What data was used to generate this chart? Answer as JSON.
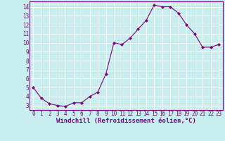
{
  "x": [
    0,
    1,
    2,
    3,
    4,
    5,
    6,
    7,
    8,
    9,
    10,
    11,
    12,
    13,
    14,
    15,
    16,
    17,
    18,
    19,
    20,
    21,
    22,
    23
  ],
  "y": [
    5.0,
    3.8,
    3.2,
    3.0,
    2.9,
    3.3,
    3.3,
    4.0,
    4.5,
    6.5,
    10.0,
    9.8,
    10.5,
    11.5,
    12.5,
    14.2,
    14.0,
    14.0,
    13.3,
    12.0,
    11.0,
    9.5,
    9.5,
    9.8
  ],
  "line_color": "#800080",
  "marker": "D",
  "marker_size": 2,
  "bg_color": "#c8eef0",
  "grid_color": "#ffffff",
  "xlabel": "Windchill (Refroidissement éolien,°C)",
  "xlabel_color": "#800080",
  "tick_color": "#800080",
  "spine_color": "#800080",
  "xlim": [
    -0.5,
    23.5
  ],
  "ylim": [
    2.5,
    14.6
  ],
  "yticks": [
    3,
    4,
    5,
    6,
    7,
    8,
    9,
    10,
    11,
    12,
    13,
    14
  ],
  "xticks": [
    0,
    1,
    2,
    3,
    4,
    5,
    6,
    7,
    8,
    9,
    10,
    11,
    12,
    13,
    14,
    15,
    16,
    17,
    18,
    19,
    20,
    21,
    22,
    23
  ],
  "tick_fontsize": 5.5,
  "xlabel_fontsize": 6.5
}
